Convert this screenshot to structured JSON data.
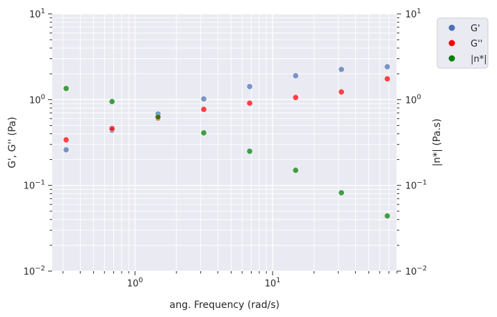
{
  "chart_data": {
    "type": "scatter",
    "xscale": "log",
    "yscale": "log",
    "xlim": [
      0.25,
      80
    ],
    "ylim_left": [
      0.01,
      10
    ],
    "ylim_right": [
      0.01,
      10
    ],
    "xlabel": "ang. Frequency (rad/s)",
    "ylabel_left": "G', G'' (Pa)",
    "ylabel_right": "|n*| (Pa.s)",
    "x_major_ticks": [
      1,
      10
    ],
    "x_tick_labels": [
      "10^0",
      "10^1"
    ],
    "y_major_ticks": [
      0.01,
      0.1,
      1,
      10
    ],
    "y_tick_labels": [
      "10^-2",
      "10^-1",
      "10^0",
      "10^1"
    ],
    "grid": true,
    "legend_position": "outside-top-right",
    "x": [
      0.316,
      0.681,
      1.47,
      3.16,
      6.81,
      14.7,
      31.6,
      68.1
    ],
    "series": [
      {
        "name": "G'",
        "axis": "left",
        "color": "#4c72b0",
        "values": [
          0.26,
          0.44,
          0.68,
          1.02,
          1.42,
          1.9,
          2.25,
          2.42
        ]
      },
      {
        "name": "G''",
        "axis": "left",
        "color": "#ff0000",
        "values": [
          0.34,
          0.46,
          0.61,
          0.77,
          0.91,
          1.06,
          1.23,
          1.75
        ]
      },
      {
        "name": "|n*|",
        "axis": "right",
        "color": "#008000",
        "values": [
          1.35,
          0.95,
          0.63,
          0.41,
          0.25,
          0.15,
          0.082,
          0.044
        ]
      }
    ]
  }
}
